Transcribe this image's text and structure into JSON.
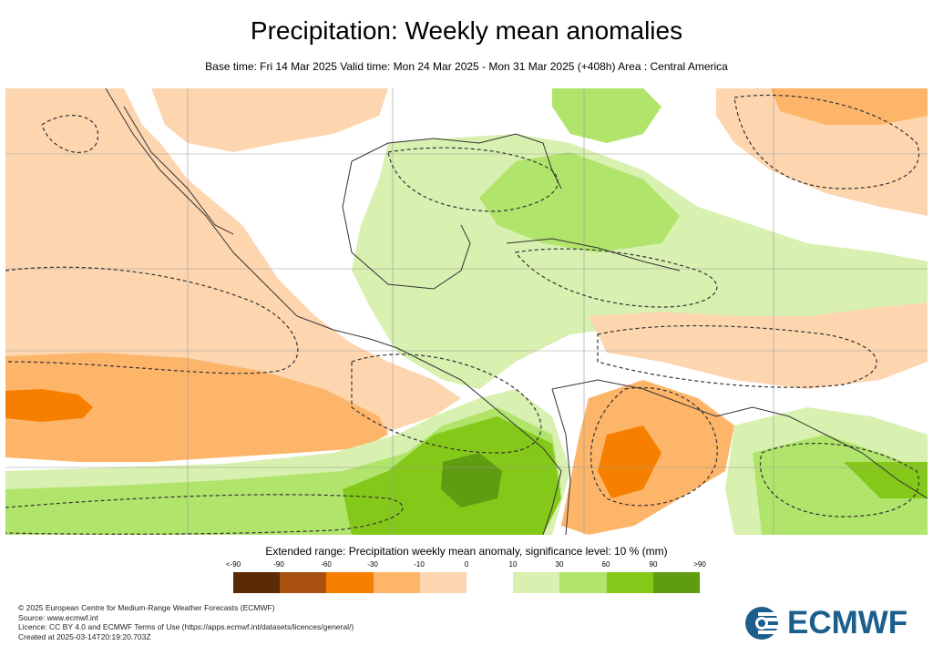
{
  "title": "Precipitation: Weekly mean anomalies",
  "subtitle": "Base time: Fri 14 Mar 2025 Valid time: Mon 24 Mar 2025 - Mon 31 Mar 2025 (+408h) Area : Central America",
  "legend": {
    "title": "Extended range: Precipitation weekly mean anomaly, significance level: 10 % (mm)",
    "labels": [
      "<-90",
      "-90",
      "-60",
      "-30",
      "-10",
      "0",
      "10",
      "30",
      "60",
      "90",
      ">90"
    ],
    "colors": [
      "#5c2a05",
      "#a9520f",
      "#f77f00",
      "#fdb56a",
      "#fdd6b0",
      "#ffffff",
      "#d8f0b0",
      "#b0e46a",
      "#84c81a",
      "#5f9c12",
      "#4a7010"
    ]
  },
  "footer": {
    "line1": "© 2025 European Centre for Medium-Range Weather Forecasts (ECMWF)",
    "line2": "Source: www.ecmwf.int",
    "line3": "Licence: CC BY 4.0 and ECMWF Terms of Use (https://apps.ecmwf.int/datasets/licences/general/)",
    "line4": "Created at 2025-03-14T20:19:20.703Z"
  },
  "logo": {
    "text": "ECMWF",
    "color": "#1c5f8d"
  },
  "map_colors": {
    "light_orange": "#fdd6b0",
    "orange": "#fdb56a",
    "dark_orange": "#f77f00",
    "light_green": "#d8f0b0",
    "green": "#b0e46a",
    "mid_green": "#84c81a",
    "dark_green": "#5f9c12"
  }
}
